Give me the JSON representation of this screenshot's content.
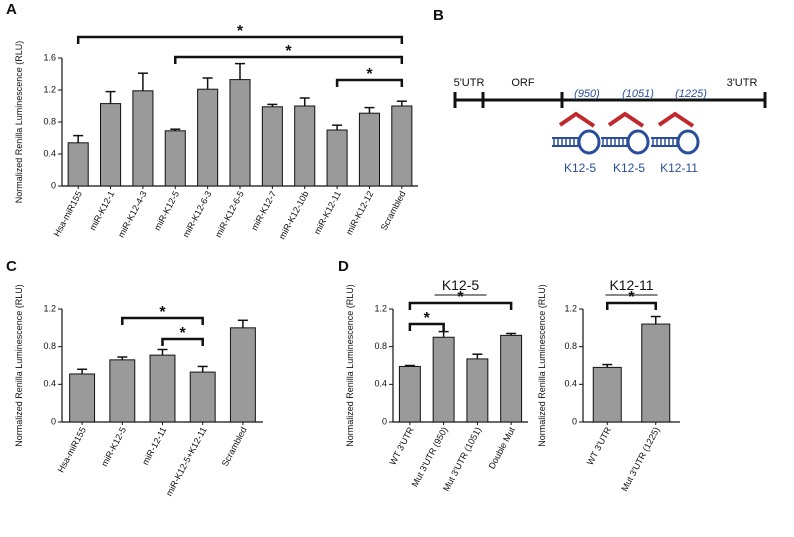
{
  "chart_data": [
    {
      "type": "bar",
      "panel": "A",
      "ylabel": "Normalized Renilla Luminescence (RLU)",
      "categories": [
        "Hsa-miR155",
        "miR-K12-1",
        "miR-K12-4-3",
        "miR-K12-5",
        "miR-K12-6-3",
        "miR-K12-6-5",
        "miR-K12-7",
        "miR-K12-10b",
        "miR-K12-11",
        "miR-K12-12",
        "Scrambled"
      ],
      "values": [
        0.54,
        1.03,
        1.19,
        0.69,
        1.21,
        1.33,
        0.99,
        1.0,
        0.7,
        0.91,
        1.0
      ],
      "errors": [
        0.09,
        0.15,
        0.22,
        0.02,
        0.14,
        0.2,
        0.03,
        0.1,
        0.06,
        0.07,
        0.06
      ],
      "color": "#9a9a9a",
      "ylim": [
        0,
        1.6
      ],
      "yticks": [
        0,
        0.4,
        0.8,
        1.2,
        1.6
      ],
      "significance": [
        "*",
        "*",
        "*"
      ]
    },
    {
      "type": "bar",
      "panel": "C",
      "ylabel": "Normalized Renilla Luminescence (RLU)",
      "categories": [
        "Hsa-miR155",
        "miR-K12-5",
        "miR-12-11",
        "miR-K12-5+K12-11",
        "Scrambled"
      ],
      "values": [
        0.51,
        0.66,
        0.71,
        0.53,
        1.0
      ],
      "errors": [
        0.05,
        0.03,
        0.06,
        0.06,
        0.08
      ],
      "color": "#9a9a9a",
      "ylim": [
        0,
        1.2
      ],
      "yticks": [
        0,
        0.4,
        0.8,
        1.2
      ],
      "significance": [
        "*",
        "*"
      ]
    },
    {
      "type": "bar",
      "panel": "D",
      "title": "K12-5",
      "ylabel": "Normalized Renilla Luminescence (RLU)",
      "categories": [
        "WT 3'UTR",
        "Mut 3'UTR (950)",
        "Mut 3'UTR (1051)",
        "Double Mut"
      ],
      "values": [
        0.59,
        0.9,
        0.67,
        0.92
      ],
      "errors": [
        0.01,
        0.06,
        0.05,
        0.02
      ],
      "color": "#9a9a9a",
      "ylim": [
        0,
        1.2
      ],
      "yticks": [
        0,
        0.4,
        0.8,
        1.2
      ],
      "significance": [
        "*",
        "*"
      ]
    },
    {
      "type": "bar",
      "title": "K12-11",
      "ylabel": "Normalized Renilla Luminescence (RLU)",
      "categories": [
        "WT 3'UTR",
        "Mut 3'UTR (1225)"
      ],
      "values": [
        0.58,
        1.04
      ],
      "errors": [
        0.03,
        0.08
      ],
      "color": "#9a9a9a",
      "ylim": [
        0,
        1.2
      ],
      "yticks": [
        0,
        0.4,
        0.8,
        1.2
      ],
      "significance": [
        "*"
      ]
    }
  ],
  "diagram": {
    "panel": "B",
    "regions": [
      "5'UTR",
      "ORF",
      "3'UTR"
    ],
    "sites": [
      {
        "position": "(950)",
        "mirna": "K12-5"
      },
      {
        "position": "(1051)",
        "mirna": "K12-5"
      },
      {
        "position": "(1225)",
        "mirna": "K12-11"
      }
    ]
  }
}
